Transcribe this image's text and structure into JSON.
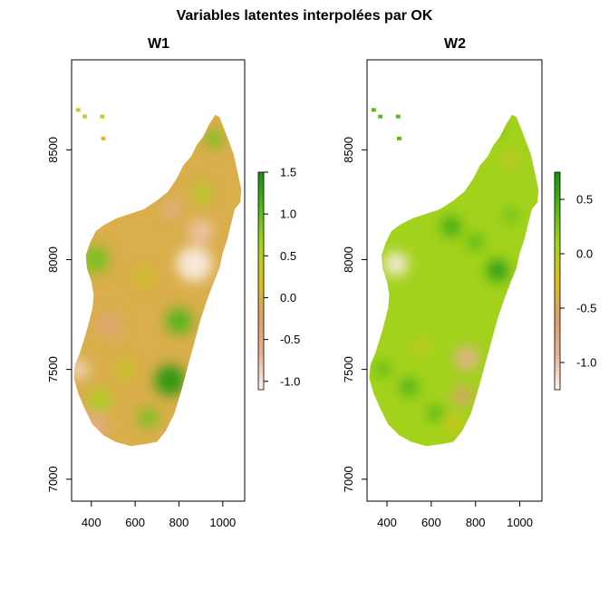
{
  "title": "Variables latentes interpolées par OK",
  "chart_data": [
    {
      "type": "heatmap",
      "title": "W1",
      "x_ticks": [
        "400",
        "600",
        "800",
        "1000"
      ],
      "y_ticks": [
        "7000",
        "7500",
        "8000",
        "8500"
      ],
      "xlim": [
        310,
        1100
      ],
      "ylim": [
        6900,
        8910
      ],
      "colorbar": {
        "range": [
          -1.1,
          1.5
        ],
        "ticks": [
          "-1.0",
          "-0.5",
          "0.0",
          "0.5",
          "1.0",
          "1.5"
        ],
        "tick_values": [
          -1.0,
          -0.5,
          0.0,
          0.5,
          1.0,
          1.5
        ],
        "colors": [
          "#fef3ef",
          "#e6b190",
          "#d9a06a",
          "#d8c020",
          "#a6d31c",
          "#54b81a",
          "#188f10"
        ]
      },
      "base_value": -0.05,
      "blobs": [
        {
          "x": 420,
          "y": 8000,
          "r": 60,
          "v": 0.9
        },
        {
          "x": 800,
          "y": 7720,
          "r": 60,
          "v": 1.1
        },
        {
          "x": 760,
          "y": 7450,
          "r": 70,
          "v": 1.4
        },
        {
          "x": 440,
          "y": 7360,
          "r": 50,
          "v": 0.6
        },
        {
          "x": 660,
          "y": 7280,
          "r": 45,
          "v": 0.9
        },
        {
          "x": 555,
          "y": 7500,
          "r": 40,
          "v": 0.4
        },
        {
          "x": 640,
          "y": 7920,
          "r": 40,
          "v": 0.3
        },
        {
          "x": 905,
          "y": 8300,
          "r": 40,
          "v": 0.6
        },
        {
          "x": 960,
          "y": 8550,
          "r": 40,
          "v": 0.9
        },
        {
          "x": 870,
          "y": 7980,
          "r": 80,
          "v": -1.05
        },
        {
          "x": 900,
          "y": 8130,
          "r": 55,
          "v": -0.8
        },
        {
          "x": 340,
          "y": 7500,
          "r": 45,
          "v": -0.9
        },
        {
          "x": 420,
          "y": 7250,
          "r": 50,
          "v": -0.6
        },
        {
          "x": 770,
          "y": 8230,
          "r": 40,
          "v": -0.6
        },
        {
          "x": 480,
          "y": 7700,
          "r": 55,
          "v": -0.35
        }
      ]
    },
    {
      "type": "heatmap",
      "title": "W2",
      "x_ticks": [
        "400",
        "600",
        "800",
        "1000"
      ],
      "y_ticks": [
        "7000",
        "7500",
        "8000",
        "8500"
      ],
      "xlim": [
        310,
        1100
      ],
      "ylim": [
        6900,
        8910
      ],
      "colorbar": {
        "range": [
          -1.25,
          0.75
        ],
        "ticks": [
          "-1.0",
          "-0.5",
          "0.0",
          "0.5"
        ],
        "tick_values": [
          -1.0,
          -0.5,
          0.0,
          0.5
        ],
        "colors": [
          "#fef3ef",
          "#e6b190",
          "#d9a06a",
          "#d8c020",
          "#a6d31c",
          "#54b81a",
          "#188f10"
        ]
      },
      "base_value": 0.1,
      "blobs": [
        {
          "x": 440,
          "y": 7980,
          "r": 55,
          "v": -1.2
        },
        {
          "x": 760,
          "y": 7550,
          "r": 55,
          "v": -0.9
        },
        {
          "x": 740,
          "y": 7380,
          "r": 45,
          "v": -0.6
        },
        {
          "x": 960,
          "y": 8450,
          "r": 30,
          "v": -0.3
        },
        {
          "x": 700,
          "y": 7250,
          "r": 40,
          "v": -0.2
        },
        {
          "x": 560,
          "y": 7600,
          "r": 40,
          "v": -0.1
        },
        {
          "x": 690,
          "y": 8150,
          "r": 45,
          "v": 0.55
        },
        {
          "x": 900,
          "y": 7950,
          "r": 50,
          "v": 0.65
        },
        {
          "x": 800,
          "y": 8080,
          "r": 35,
          "v": 0.45
        },
        {
          "x": 500,
          "y": 7420,
          "r": 40,
          "v": 0.5
        },
        {
          "x": 620,
          "y": 7300,
          "r": 35,
          "v": 0.45
        },
        {
          "x": 880,
          "y": 8600,
          "r": 30,
          "v": 0.6
        },
        {
          "x": 380,
          "y": 7500,
          "r": 30,
          "v": 0.5
        },
        {
          "x": 960,
          "y": 8200,
          "r": 30,
          "v": 0.4
        }
      ]
    }
  ]
}
